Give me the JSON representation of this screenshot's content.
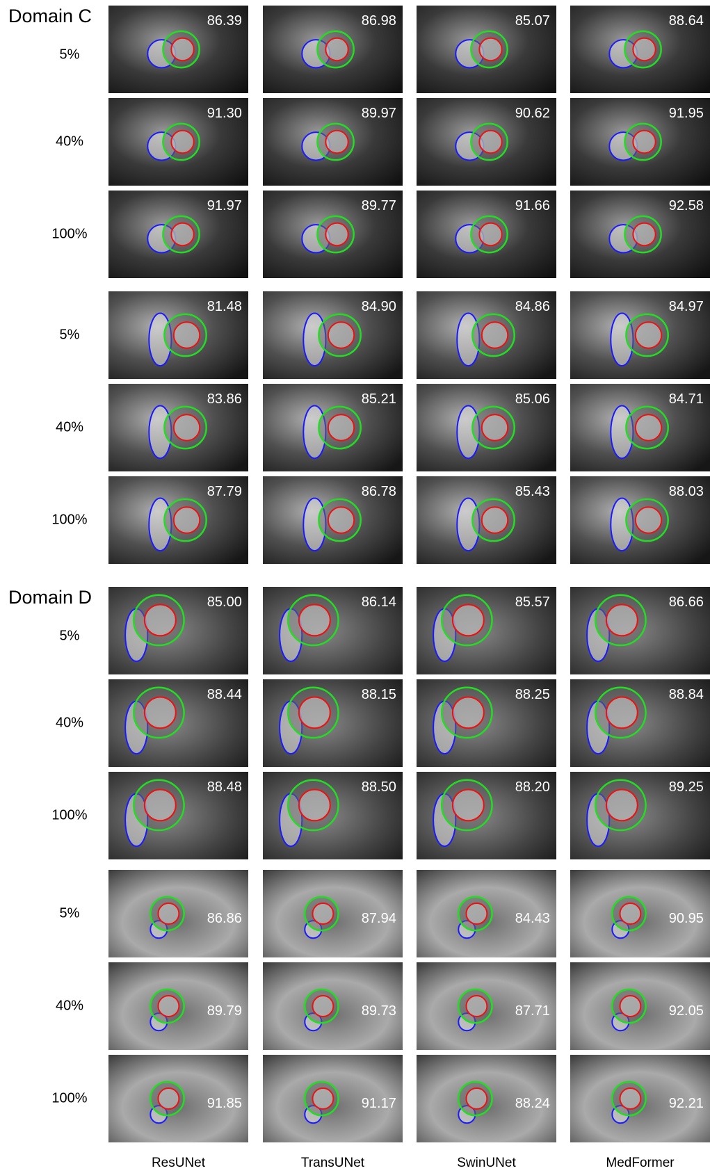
{
  "columns": [
    "ResUNet",
    "TransUNet",
    "SwinUNet",
    "MedFormer"
  ],
  "domains": [
    {
      "label": "Domain C",
      "groups": [
        {
          "rows": [
            {
              "label": "5%",
              "scores": [
                "86.39",
                "86.98",
                "85.07",
                "88.64"
              ]
            },
            {
              "label": "40%",
              "scores": [
                "91.30",
                "89.97",
                "90.62",
                "91.95"
              ]
            },
            {
              "label": "100%",
              "scores": [
                "91.97",
                "89.77",
                "91.66",
                "92.58"
              ]
            }
          ]
        },
        {
          "rows": [
            {
              "label": "5%",
              "scores": [
                "81.48",
                "84.90",
                "84.86",
                "84.97"
              ]
            },
            {
              "label": "40%",
              "scores": [
                "83.86",
                "85.21",
                "85.06",
                "84.71"
              ]
            },
            {
              "label": "100%",
              "scores": [
                "87.79",
                "86.78",
                "85.43",
                "88.03"
              ]
            }
          ]
        }
      ]
    },
    {
      "label": "Domain D",
      "groups": [
        {
          "rows": [
            {
              "label": "5%",
              "scores": [
                "85.00",
                "86.14",
                "85.57",
                "86.66"
              ]
            },
            {
              "label": "40%",
              "scores": [
                "88.44",
                "88.15",
                "88.25",
                "88.84"
              ]
            },
            {
              "label": "100%",
              "scores": [
                "88.48",
                "88.50",
                "88.20",
                "89.25"
              ]
            }
          ]
        },
        {
          "rows": [
            {
              "label": "5%",
              "scores": [
                "86.86",
                "87.94",
                "84.43",
                "90.95"
              ]
            },
            {
              "label": "40%",
              "scores": [
                "89.79",
                "89.73",
                "87.71",
                "92.05"
              ]
            },
            {
              "label": "100%",
              "scores": [
                "91.85",
                "91.17",
                "88.24",
                "92.21"
              ]
            }
          ]
        }
      ]
    }
  ]
}
